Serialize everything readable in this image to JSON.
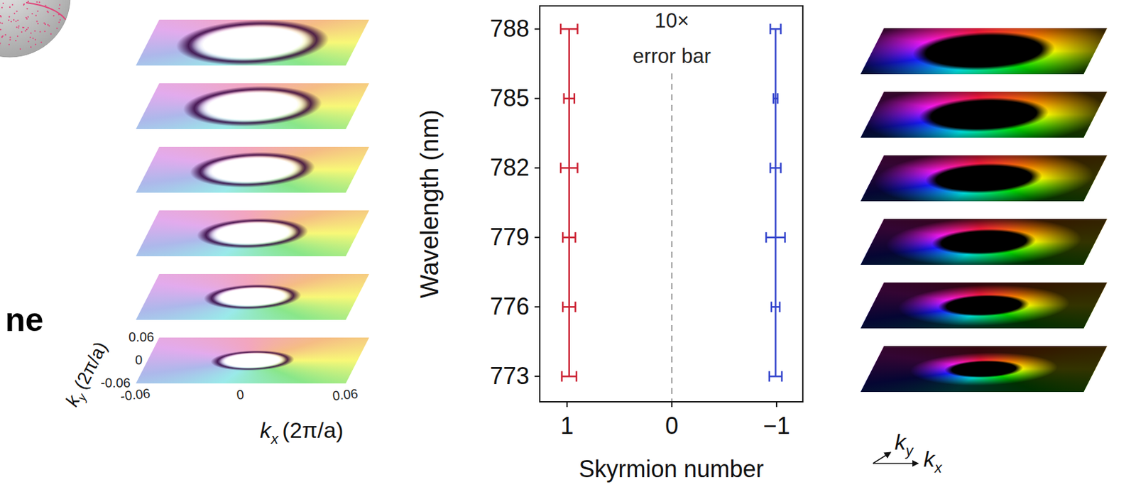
{
  "chart_data": {
    "type": "errorbar",
    "orientation": "horizontal",
    "x_label": "Skyrmion number",
    "y_label": "Wavelength (nm)",
    "y": [
      773,
      776,
      779,
      782,
      785,
      788
    ],
    "series": [
      {
        "color": "#cc2233",
        "values": [
          0.98,
          0.98,
          0.98,
          0.98,
          0.98,
          0.98
        ],
        "errors": [
          0.07,
          0.06,
          0.06,
          0.08,
          0.05,
          0.08
        ]
      },
      {
        "color": "#3344cc",
        "values": [
          -0.99,
          -0.99,
          -0.99,
          -0.99,
          -0.99,
          -0.99
        ],
        "errors": [
          0.06,
          0.04,
          0.09,
          0.05,
          0.02,
          0.05
        ]
      }
    ],
    "xlim": [
      1.26,
      -1.25
    ],
    "xticks": [
      1,
      0,
      {
        "value": -1,
        "label": "−1"
      }
    ],
    "ylim": [
      771.9,
      789
    ],
    "yticks": [
      773,
      776,
      779,
      782,
      785,
      788
    ],
    "reference_x": 0,
    "annotations": [
      "10×",
      "error bar"
    ]
  },
  "momentum_maps": {
    "left": {
      "k_symbol": "k",
      "x_subscript": "x",
      "y_subscript": "y",
      "unit": "(2π/a)",
      "kx_ticks": [
        -0.06,
        0,
        0.06
      ],
      "ky_ticks": [
        0.06,
        0,
        -0.06
      ]
    },
    "right": {
      "k_symbol": "k",
      "x_subscript": "x",
      "y_subscript": "y"
    }
  },
  "cropped_text": "ne"
}
